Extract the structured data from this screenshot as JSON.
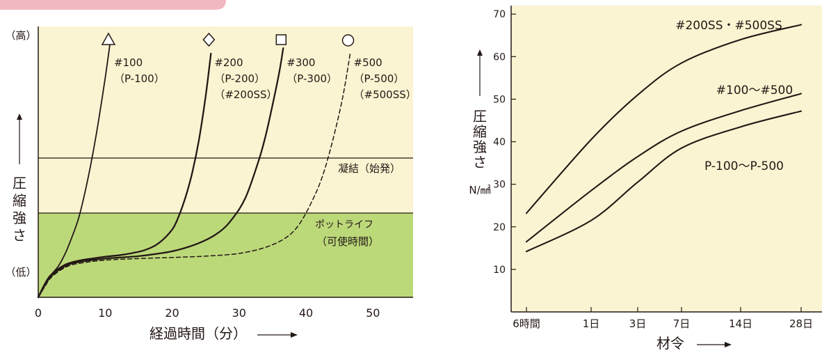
{
  "colors": {
    "panel_fill": "#fbf4d2",
    "pot_life_fill": "#bcd97a",
    "top_bar": "#f2b8c2",
    "ink": "#231815"
  },
  "chart_data": [
    {
      "type": "line",
      "xlabel": "経過時間（分）",
      "ylabel": "圧縮強さ",
      "y_high_label": "（高）",
      "y_low_label": "（低）",
      "xlim": [
        0,
        56
      ],
      "ylim": [
        0,
        100
      ],
      "x_ticks": [
        0,
        10,
        20,
        30,
        40,
        50
      ],
      "y_axis_ticks_shown": false,
      "grid": false,
      "regions": [
        {
          "name": "pot_life",
          "label": [
            "ポットライフ",
            "（可使時間）"
          ],
          "y_range": [
            0,
            31
          ]
        },
        {
          "name": "setting",
          "label": [
            "凝結（始発）"
          ],
          "y_value": 51.5
        }
      ],
      "series": [
        {
          "name": "#100",
          "labels": [
            "#100",
            "（P-100）"
          ],
          "marker": "triangle",
          "style": "solid",
          "x": [
            0,
            1,
            2,
            3,
            4,
            5,
            6,
            7,
            8,
            9,
            10,
            10.8
          ],
          "y": [
            0,
            5,
            8.5,
            11.5,
            16,
            22,
            29,
            39,
            51,
            65,
            81,
            95
          ]
        },
        {
          "name": "#200",
          "labels": [
            "#200",
            "（P-200）",
            "（#200SS）"
          ],
          "marker": "diamond",
          "style": "solid",
          "x": [
            0,
            1,
            2,
            4,
            6,
            8,
            10,
            12,
            14,
            16,
            18,
            20,
            21,
            22,
            23,
            24,
            25,
            25.8
          ],
          "y": [
            0,
            5,
            8.5,
            12,
            13.5,
            14.3,
            15,
            15.5,
            16.3,
            17.5,
            20,
            25,
            30,
            37,
            46,
            58,
            74,
            90
          ]
        },
        {
          "name": "#300",
          "labels": [
            "#300",
            "（P-300）"
          ],
          "marker": "square",
          "style": "solid",
          "x": [
            0,
            1,
            2,
            4,
            6,
            10,
            15,
            20,
            24,
            27,
            29,
            31,
            33,
            34,
            35,
            36,
            36.6
          ],
          "y": [
            0,
            4.5,
            8,
            11.5,
            13,
            14.3,
            15.2,
            17,
            20,
            24,
            29,
            37,
            51,
            60,
            71,
            83,
            92
          ]
        },
        {
          "name": "#500",
          "labels": [
            "#500",
            "（P-500）",
            "（#500SS）"
          ],
          "marker": "circle",
          "style": "dashed",
          "x": [
            0,
            1,
            2,
            4,
            6,
            10,
            15,
            20,
            25,
            30,
            34,
            37,
            39,
            41,
            42.5,
            44,
            45.5,
            46.6
          ],
          "y": [
            0,
            4,
            7.5,
            11,
            12.5,
            13.7,
            14.3,
            14.7,
            15.2,
            16.2,
            18.5,
            22,
            27,
            36,
            45,
            58,
            74,
            90
          ]
        }
      ]
    },
    {
      "type": "line",
      "xlabel": "材令",
      "ylabel": "圧縮強さ",
      "yunit": "N/㎟",
      "ylim": [
        0,
        72
      ],
      "y_ticks": [
        10,
        20,
        30,
        40,
        50,
        60,
        70
      ],
      "categories": [
        "6時間",
        "1日",
        "3日",
        "7日",
        "14日",
        "28日"
      ],
      "grid": false,
      "series": [
        {
          "name": "#200SS・#500SS",
          "values": [
            23.2,
            40.5,
            51,
            58.5,
            64,
            67.5
          ]
        },
        {
          "name": "#100～#500",
          "values": [
            16.5,
            28.5,
            36.5,
            42.5,
            47.3,
            51.3
          ]
        },
        {
          "name": "P-100～P-500",
          "values": [
            14.2,
            21.5,
            30.5,
            38.5,
            43.5,
            47.2
          ]
        }
      ]
    }
  ]
}
